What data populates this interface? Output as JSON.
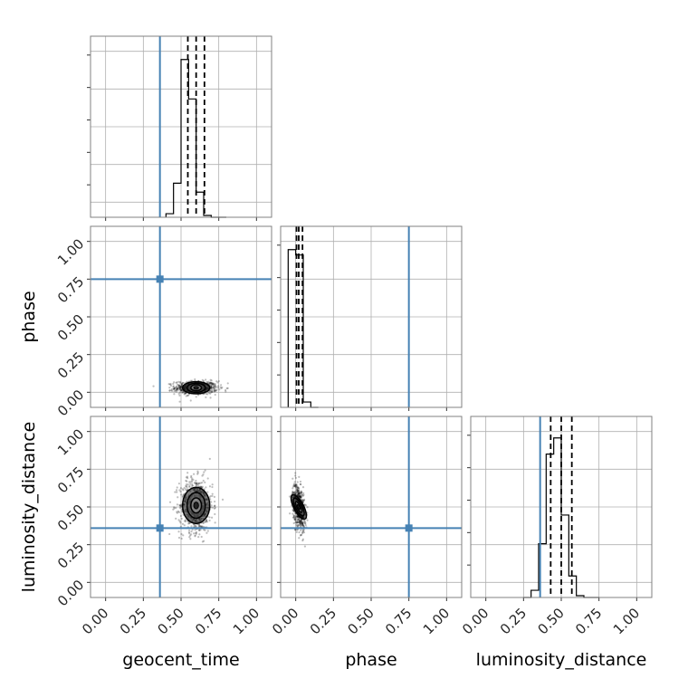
{
  "chart_data": {
    "type": "corner",
    "parameters": [
      "geocent_time",
      "phase",
      "luminosity_distance"
    ],
    "axis_labels": {
      "x": [
        "geocent_time",
        "phase",
        "luminosity_distance"
      ],
      "y": [
        "",
        "phase",
        "luminosity_distance"
      ]
    },
    "range": [
      -0.1,
      1.1
    ],
    "ticks": [
      0.0,
      0.25,
      0.5,
      0.75,
      1.0
    ],
    "tick_labels": [
      "0.00",
      "0.25",
      "0.50",
      "0.75",
      "1.00"
    ],
    "grid": true,
    "truths": {
      "color": "#4682b4",
      "values": [
        0.36,
        0.75,
        0.36
      ]
    },
    "histograms": [
      {
        "parameter": "geocent_time",
        "bin_edges": [
          0.4,
          0.45,
          0.5,
          0.55,
          0.6,
          0.65,
          0.7,
          0.75,
          0.8
        ],
        "counts": [
          0.02,
          0.19,
          0.88,
          0.66,
          0.14,
          0.01,
          0.0,
          0.0
        ],
        "quantiles": [
          0.545,
          0.6,
          0.655
        ]
      },
      {
        "parameter": "phase",
        "bin_edges": [
          -0.05,
          0.0,
          0.05,
          0.1,
          0.15
        ],
        "counts": [
          0.88,
          0.85,
          0.03,
          0.0
        ],
        "quantiles": [
          0.005,
          0.02,
          0.045
        ]
      },
      {
        "parameter": "luminosity_distance",
        "bin_edges": [
          0.25,
          0.3,
          0.35,
          0.4,
          0.45,
          0.5,
          0.55,
          0.6,
          0.65,
          0.7,
          0.75
        ],
        "counts": [
          0.0,
          0.04,
          0.3,
          0.8,
          0.89,
          0.46,
          0.12,
          0.01,
          0.0,
          0.0
        ],
        "quantiles": [
          0.43,
          0.5,
          0.57
        ]
      }
    ],
    "scatter_clouds": [
      {
        "x_param": "geocent_time",
        "y_param": "phase",
        "center": [
          0.6,
          0.03
        ],
        "spread": [
          0.07,
          0.022
        ]
      },
      {
        "x_param": "geocent_time",
        "y_param": "luminosity_distance",
        "center": [
          0.6,
          0.51
        ],
        "spread": [
          0.055,
          0.09
        ]
      },
      {
        "x_param": "phase",
        "y_param": "luminosity_distance",
        "center": [
          0.02,
          0.5
        ],
        "spread": [
          0.02,
          0.07
        ]
      }
    ],
    "contours": [
      {
        "x_param": "geocent_time",
        "y_param": "phase",
        "center": [
          0.6,
          0.03
        ],
        "levels": [
          [
            0.035,
            0.02
          ],
          [
            0.06,
            0.03
          ],
          [
            0.09,
            0.04
          ]
        ]
      },
      {
        "x_param": "geocent_time",
        "y_param": "luminosity_distance",
        "center": [
          0.6,
          0.51
        ],
        "levels": [
          [
            0.035,
            0.05
          ],
          [
            0.06,
            0.085
          ],
          [
            0.09,
            0.12
          ]
        ]
      },
      {
        "x_param": "phase",
        "y_param": "luminosity_distance",
        "center": [
          0.02,
          0.5
        ],
        "levels": [
          [
            0.012,
            0.04
          ],
          [
            0.022,
            0.065
          ],
          [
            0.032,
            0.09
          ]
        ]
      }
    ]
  }
}
